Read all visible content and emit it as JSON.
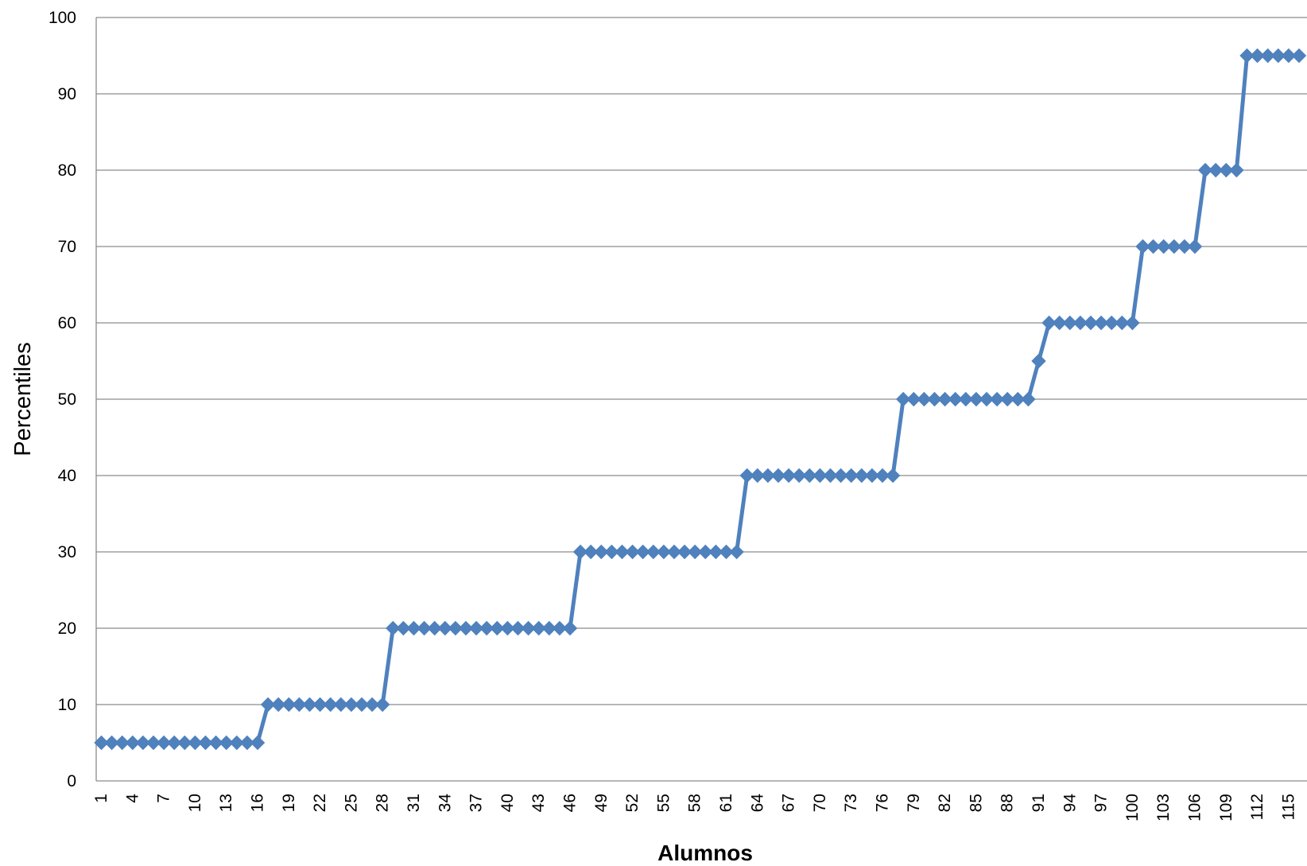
{
  "chart_data": {
    "type": "line",
    "title": "",
    "xlabel": "Alumnos",
    "ylabel": "Percentiles",
    "ylim": [
      0,
      100
    ],
    "yticks": [
      0,
      10,
      20,
      30,
      40,
      50,
      60,
      70,
      80,
      90,
      100
    ],
    "grid": true,
    "x_tick_labels": [
      "1",
      "4",
      "7",
      "10",
      "13",
      "16",
      "19",
      "22",
      "25",
      "28",
      "31",
      "34",
      "37",
      "40",
      "43",
      "46",
      "49",
      "52",
      "55",
      "58",
      "61",
      "64",
      "67",
      "70",
      "73",
      "76",
      "79",
      "82",
      "85",
      "88",
      "91",
      "94",
      "97",
      "100",
      "103",
      "106",
      "109",
      "112",
      "115"
    ],
    "colors": {
      "series": "#4f81bd",
      "grid": "#8c8c8c"
    },
    "series": [
      {
        "marker": "diamond",
        "x": [
          1,
          2,
          3,
          4,
          5,
          6,
          7,
          8,
          9,
          10,
          11,
          12,
          13,
          14,
          15,
          16,
          17,
          18,
          19,
          20,
          21,
          22,
          23,
          24,
          25,
          26,
          27,
          28,
          29,
          30,
          31,
          32,
          33,
          34,
          35,
          36,
          37,
          38,
          39,
          40,
          41,
          42,
          43,
          44,
          45,
          46,
          47,
          48,
          49,
          50,
          51,
          52,
          53,
          54,
          55,
          56,
          57,
          58,
          59,
          60,
          61,
          62,
          63,
          64,
          65,
          66,
          67,
          68,
          69,
          70,
          71,
          72,
          73,
          74,
          75,
          76,
          77,
          78,
          79,
          80,
          81,
          82,
          83,
          84,
          85,
          86,
          87,
          88,
          89,
          90,
          91,
          92,
          93,
          94,
          95,
          96,
          97,
          98,
          99,
          100,
          101,
          102,
          103,
          104,
          105,
          106,
          107,
          108,
          109,
          110,
          111,
          112,
          113,
          114,
          115,
          116
        ],
        "values": [
          5,
          5,
          5,
          5,
          5,
          5,
          5,
          5,
          5,
          5,
          5,
          5,
          5,
          5,
          5,
          5,
          10,
          10,
          10,
          10,
          10,
          10,
          10,
          10,
          10,
          10,
          10,
          10,
          20,
          20,
          20,
          20,
          20,
          20,
          20,
          20,
          20,
          20,
          20,
          20,
          20,
          20,
          20,
          20,
          20,
          20,
          30,
          30,
          30,
          30,
          30,
          30,
          30,
          30,
          30,
          30,
          30,
          30,
          30,
          30,
          30,
          30,
          40,
          40,
          40,
          40,
          40,
          40,
          40,
          40,
          40,
          40,
          40,
          40,
          40,
          40,
          40,
          50,
          50,
          50,
          50,
          50,
          50,
          50,
          50,
          50,
          50,
          50,
          50,
          50,
          55,
          60,
          60,
          60,
          60,
          60,
          60,
          60,
          60,
          60,
          70,
          70,
          70,
          70,
          70,
          70,
          80,
          80,
          80,
          80,
          95,
          95,
          95,
          95,
          95,
          95
        ]
      }
    ]
  }
}
